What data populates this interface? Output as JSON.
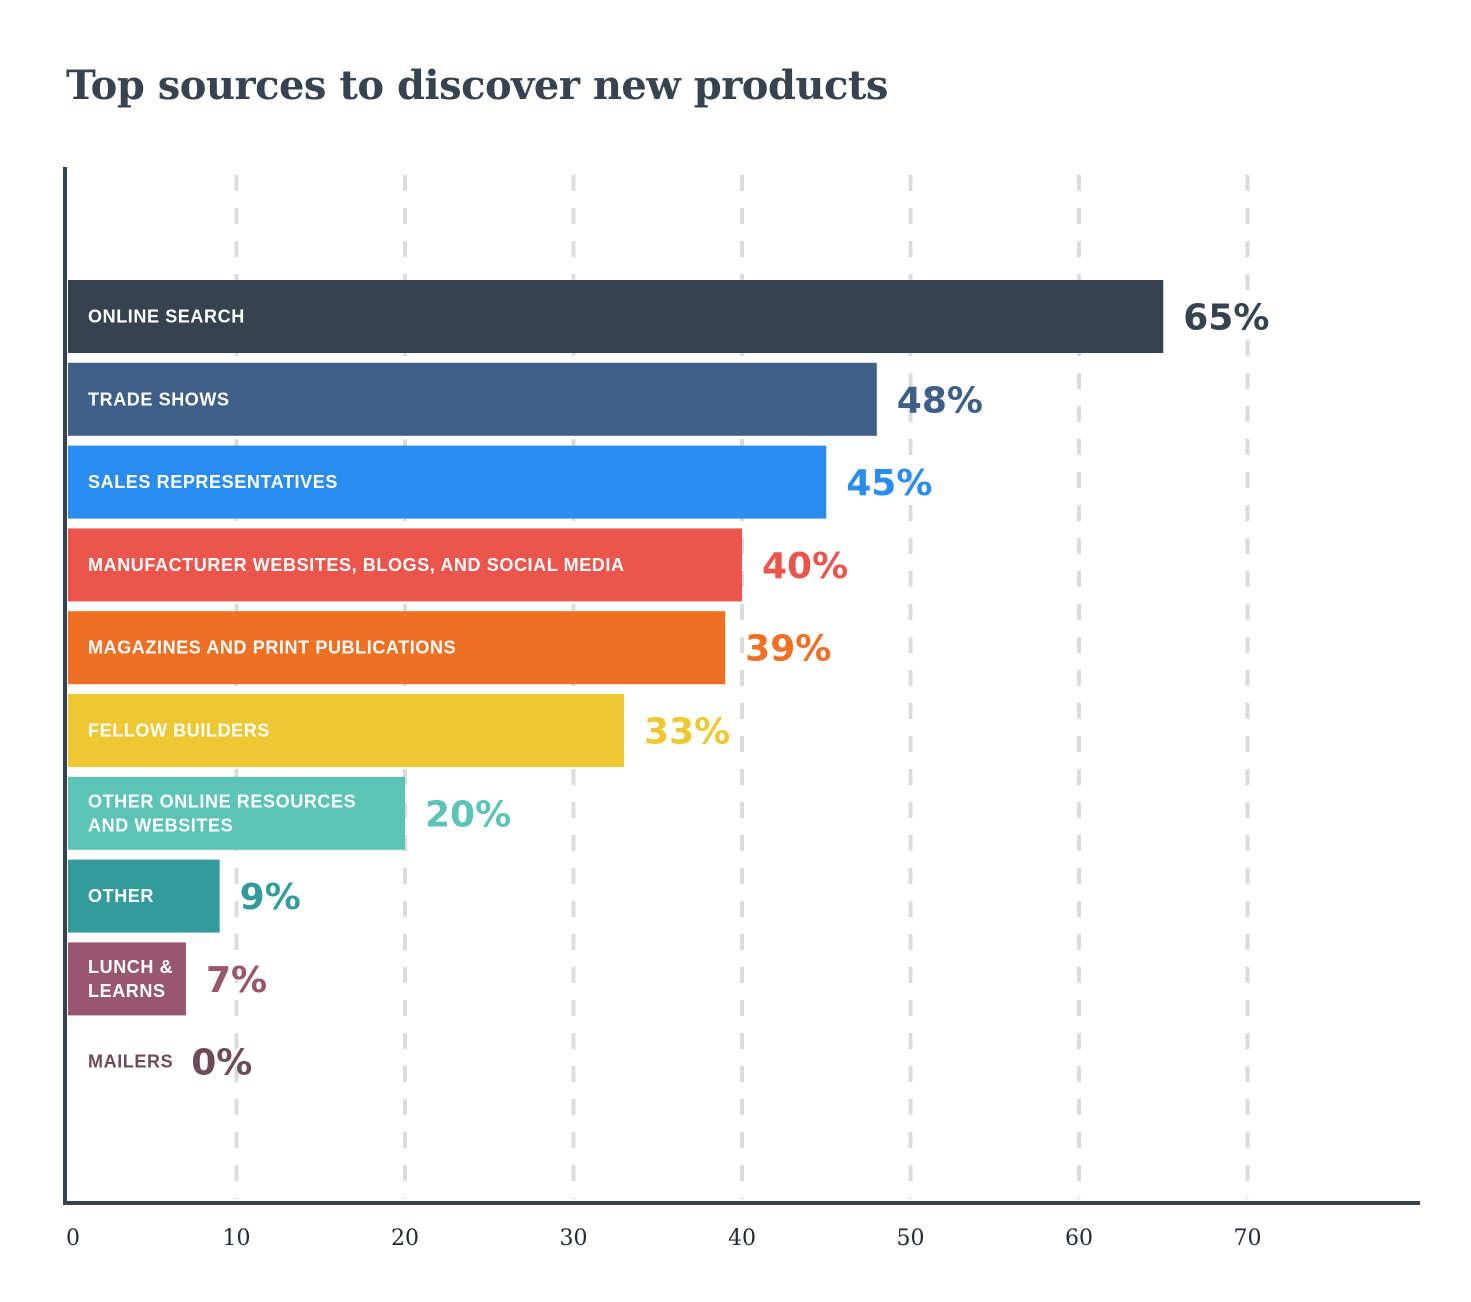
{
  "chart_data": {
    "type": "bar",
    "orientation": "horizontal",
    "title": "Top sources to discover new products",
    "xlabel": "",
    "ylabel": "",
    "xlim": [
      0,
      80
    ],
    "ticks": [
      0,
      10,
      20,
      30,
      40,
      50,
      60,
      70
    ],
    "grid": "vertical-dashed",
    "categories": [
      [
        "ONLINE SEARCH"
      ],
      [
        "TRADE SHOWS"
      ],
      [
        "SALES REPRESENTATIVES"
      ],
      [
        "MANUFACTURER WEBSITES, BLOGS, AND SOCIAL MEDIA"
      ],
      [
        "MAGAZINES AND PRINT PUBLICATIONS"
      ],
      [
        "FELLOW BUILDERS"
      ],
      [
        "OTHER ONLINE RESOURCES",
        "AND WEBSITES"
      ],
      [
        "OTHER"
      ],
      [
        "LUNCH &",
        "LEARNS"
      ],
      [
        "MAILERS"
      ]
    ],
    "values": [
      65,
      48,
      45,
      40,
      39,
      33,
      20,
      9,
      7,
      0
    ],
    "value_labels": [
      "65%",
      "48%",
      "45%",
      "40%",
      "39%",
      "33%",
      "20%",
      "9%",
      "7%",
      "0%"
    ],
    "colors": [
      "#36434f",
      "#3d5f88",
      "#2b8cf0",
      "#ec554c",
      "#f07023",
      "#edc832",
      "#5cc4b4",
      "#339b9b",
      "#98566f",
      "#6f4a59"
    ]
  }
}
